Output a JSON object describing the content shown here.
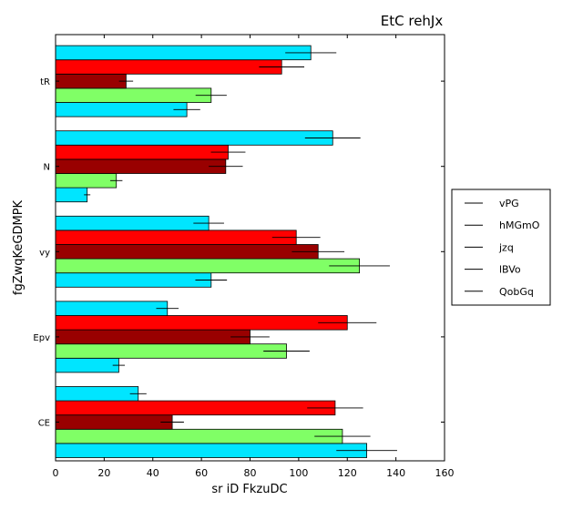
{
  "chart_data": {
    "type": "bar",
    "orientation": "horizontal",
    "title": "EtC rehJx",
    "xlabel": "sr iD FkzuDC",
    "ylabel": "fgZwqKeGDMPK",
    "xlim": [
      0,
      160
    ],
    "xticks": [
      0,
      20,
      40,
      60,
      80,
      100,
      120,
      140,
      160
    ],
    "categories": [
      "CE",
      "Epv",
      "vy",
      "N",
      "tR"
    ],
    "grid": false,
    "legend_position": "right",
    "series": [
      {
        "name": "vPG",
        "color": "#00e5ff",
        "values": [
          128,
          26,
          64,
          13,
          54
        ],
        "errors": [
          12.5,
          2.5,
          6.5,
          1.3,
          5.5
        ]
      },
      {
        "name": "hMGmO",
        "color": "#80ff66",
        "values": [
          118,
          95,
          125,
          25,
          64
        ],
        "errors": [
          11.5,
          9.5,
          12.5,
          2.5,
          6.4
        ]
      },
      {
        "name": "jzq",
        "color": "#990000",
        "values": [
          48,
          80,
          108,
          70,
          29
        ],
        "errors": [
          4.8,
          8.0,
          10.8,
          7.0,
          2.9
        ]
      },
      {
        "name": "lBVo",
        "color": "#ff0000",
        "values": [
          115,
          120,
          99,
          71,
          93
        ],
        "errors": [
          11.5,
          12.0,
          9.9,
          7.1,
          9.3
        ]
      },
      {
        "name": "QobGq",
        "color": "#00e5ff",
        "values": [
          34,
          46,
          63,
          114,
          105
        ],
        "errors": [
          3.4,
          4.6,
          6.3,
          11.4,
          10.5
        ]
      }
    ]
  }
}
